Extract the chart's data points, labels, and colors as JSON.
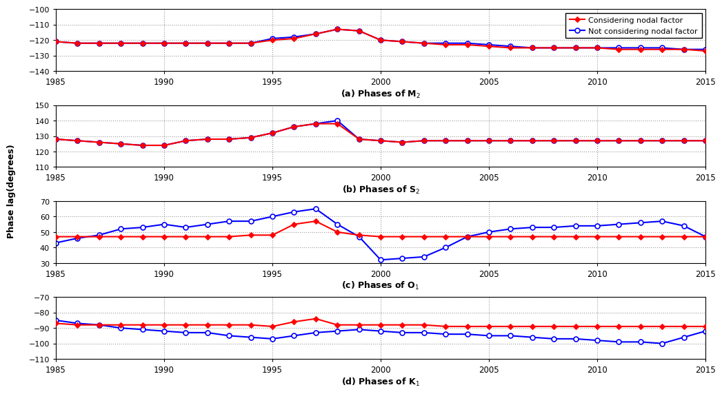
{
  "years": [
    1985,
    1986,
    1987,
    1988,
    1989,
    1990,
    1991,
    1992,
    1993,
    1994,
    1995,
    1996,
    1997,
    1998,
    1999,
    2000,
    2001,
    2002,
    2003,
    2004,
    2005,
    2006,
    2007,
    2008,
    2009,
    2010,
    2011,
    2012,
    2013,
    2014,
    2015
  ],
  "M2_red": [
    -121,
    -122,
    -122,
    -122,
    -122,
    -122,
    -122,
    -122,
    -122,
    -122,
    -120,
    -119,
    -116,
    -113,
    -114,
    -120,
    -121,
    -122,
    -123,
    -123,
    -124,
    -125,
    -125,
    -125,
    -125,
    -125,
    -126,
    -126,
    -126,
    -126,
    -127
  ],
  "M2_blue": [
    -121,
    -122,
    -122,
    -122,
    -122,
    -122,
    -122,
    -122,
    -122,
    -122,
    -119,
    -118,
    -116,
    -113,
    -114,
    -120,
    -121,
    -122,
    -122,
    -122,
    -123,
    -124,
    -125,
    -125,
    -125,
    -125,
    -125,
    -125,
    -125,
    -126,
    -126
  ],
  "S2_red": [
    128,
    127,
    126,
    125,
    124,
    124,
    127,
    128,
    128,
    129,
    132,
    136,
    138,
    138,
    128,
    127,
    126,
    127,
    127,
    127,
    127,
    127,
    127,
    127,
    127,
    127,
    127,
    127,
    127,
    127,
    127
  ],
  "S2_blue": [
    128,
    127,
    126,
    125,
    124,
    124,
    127,
    128,
    128,
    129,
    132,
    136,
    138,
    140,
    128,
    127,
    126,
    127,
    127,
    127,
    127,
    127,
    127,
    127,
    127,
    127,
    127,
    127,
    127,
    127,
    127
  ],
  "O1_red": [
    47,
    47,
    47,
    47,
    47,
    47,
    47,
    47,
    47,
    48,
    48,
    55,
    57,
    50,
    48,
    47,
    47,
    47,
    47,
    47,
    47,
    47,
    47,
    47,
    47,
    47,
    47,
    47,
    47,
    47,
    47
  ],
  "O1_blue": [
    43,
    46,
    48,
    52,
    53,
    55,
    53,
    55,
    57,
    57,
    60,
    63,
    65,
    55,
    47,
    32,
    33,
    34,
    40,
    47,
    50,
    52,
    53,
    53,
    54,
    54,
    55,
    56,
    57,
    54,
    47
  ],
  "K1_red": [
    -87,
    -88,
    -88,
    -88,
    -88,
    -88,
    -88,
    -88,
    -88,
    -88,
    -89,
    -86,
    -84,
    -88,
    -88,
    -88,
    -88,
    -88,
    -89,
    -89,
    -89,
    -89,
    -89,
    -89,
    -89,
    -89,
    -89,
    -89,
    -89,
    -89,
    -89
  ],
  "K1_blue": [
    -85,
    -87,
    -88,
    -90,
    -91,
    -92,
    -93,
    -93,
    -95,
    -96,
    -97,
    -95,
    -93,
    -92,
    -91,
    -92,
    -93,
    -93,
    -94,
    -94,
    -95,
    -95,
    -96,
    -97,
    -97,
    -98,
    -99,
    -99,
    -100,
    -96,
    -92
  ],
  "color_red": "#FF0000",
  "color_blue": "#0000FF",
  "M2_ylim": [
    -140,
    -100
  ],
  "M2_yticks": [
    -100,
    -110,
    -120,
    -130,
    -140
  ],
  "S2_ylim": [
    110,
    150
  ],
  "S2_yticks": [
    110,
    120,
    130,
    140,
    150
  ],
  "O1_ylim": [
    30,
    70
  ],
  "O1_yticks": [
    30,
    40,
    50,
    60,
    70
  ],
  "K1_ylim": [
    -110,
    -70
  ],
  "K1_yticks": [
    -70,
    -80,
    -90,
    -100,
    -110
  ],
  "xlim": [
    1985,
    2015
  ],
  "xticks": [
    1985,
    1990,
    1995,
    2000,
    2005,
    2010,
    2015
  ],
  "title_a": "(a) Phases of M$_2$",
  "title_b": "(b) Phases of S$_2$",
  "title_c": "(c) Phases of O$_1$",
  "title_d": "(d) Phases of K$_1$",
  "ylabel": "Phase lag(degrees)",
  "legend_red": "Considering nodal factor",
  "legend_blue": "Not considering nodal factor",
  "bg_color": "#FFFFFF",
  "grid_color": "#AAAAAA",
  "marker_red": "D",
  "marker_blue": "o"
}
